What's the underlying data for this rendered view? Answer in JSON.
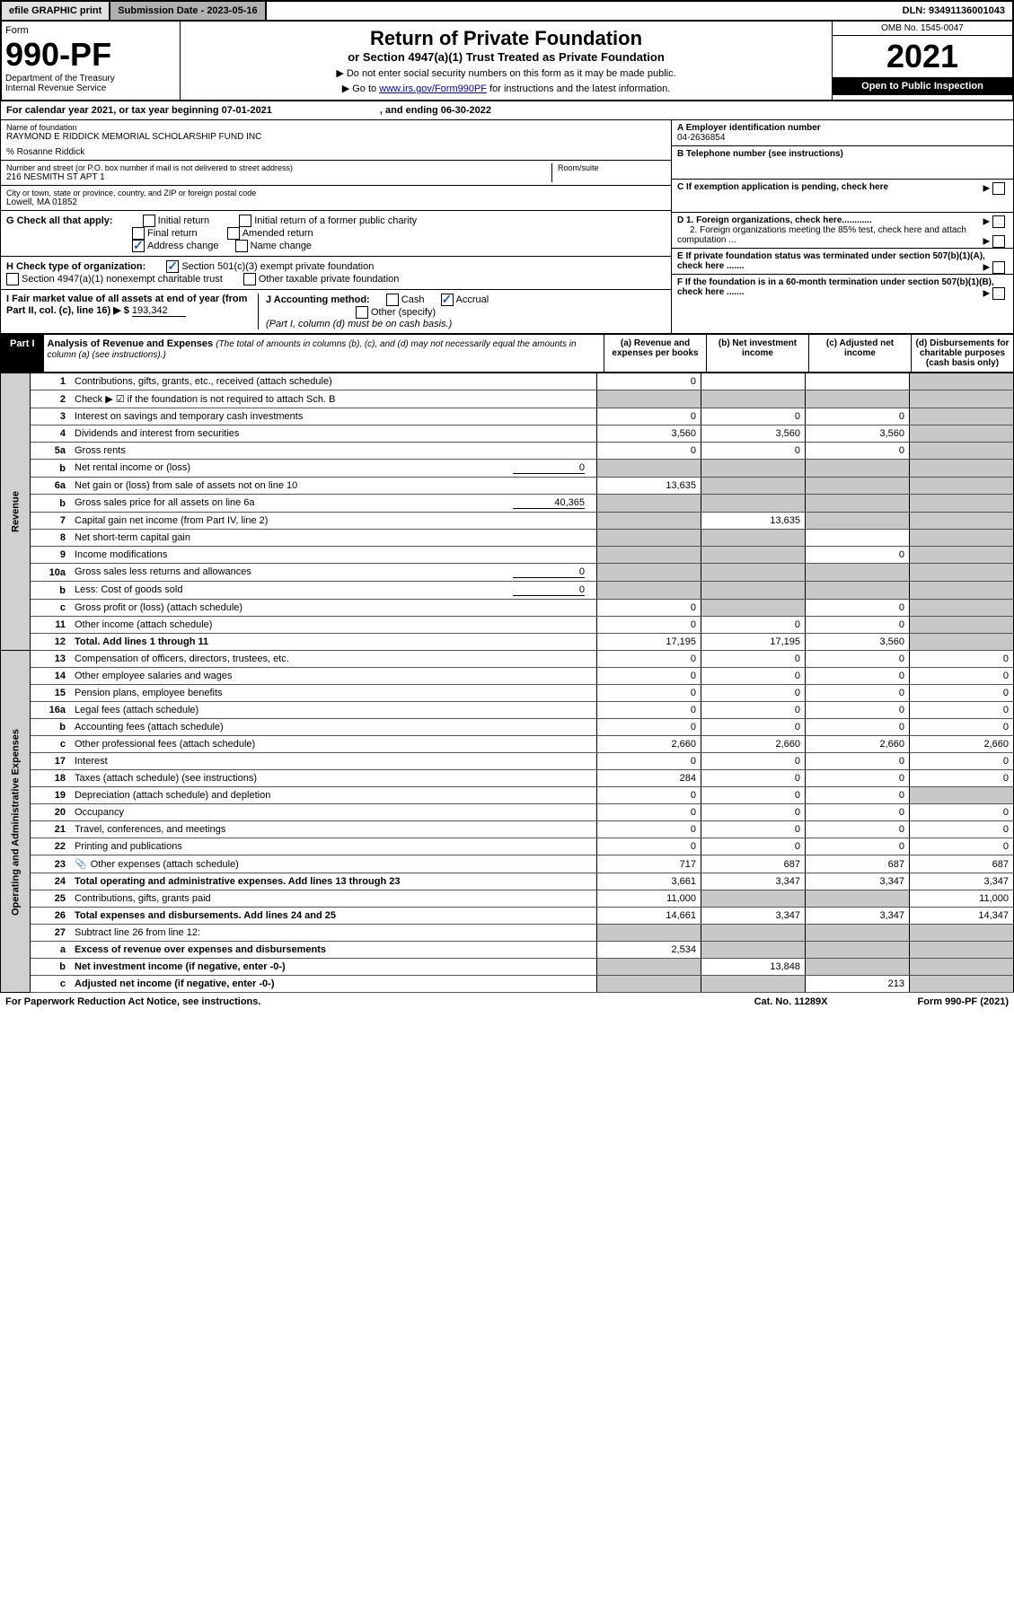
{
  "topbar": {
    "efile": "efile GRAPHIC print",
    "subdate_label": "Submission Date - 2023-05-16",
    "dln": "DLN: 93491136001043"
  },
  "header": {
    "form_label": "Form",
    "form_number": "990-PF",
    "dept": "Department of the Treasury",
    "irs": "Internal Revenue Service",
    "title": "Return of Private Foundation",
    "subtitle": "or Section 4947(a)(1) Trust Treated as Private Foundation",
    "instr1": "▶ Do not enter social security numbers on this form as it may be made public.",
    "instr2_pre": "▶ Go to ",
    "instr2_link": "www.irs.gov/Form990PF",
    "instr2_post": " for instructions and the latest information.",
    "omb": "OMB No. 1545-0047",
    "year": "2021",
    "inspection": "Open to Public Inspection"
  },
  "calendar": {
    "text1": "For calendar year 2021, or tax year beginning 07-01-2021",
    "text2": ", and ending 06-30-2022"
  },
  "foundation": {
    "name_label": "Name of foundation",
    "name": "RAYMOND E RIDDICK MEMORIAL SCHOLARSHIP FUND INC",
    "care_of": "% Rosanne Riddick",
    "addr_label": "Number and street (or P.O. box number if mail is not delivered to street address)",
    "addr": "216 NESMITH ST APT 1",
    "room_label": "Room/suite",
    "city_label": "City or town, state or province, country, and ZIP or foreign postal code",
    "city": "Lowell, MA  01852",
    "a_label": "A Employer identification number",
    "a_val": "04-2636854",
    "b_label": "B Telephone number (see instructions)",
    "c_label": "C If exemption application is pending, check here",
    "d1_label": "D 1. Foreign organizations, check here............",
    "d2_label": "2. Foreign organizations meeting the 85% test, check here and attach computation ...",
    "e_label": "E  If private foundation status was terminated under section 507(b)(1)(A), check here .......",
    "f_label": "F  If the foundation is in a 60-month termination under section 507(b)(1)(B), check here .......",
    "g_label": "G Check all that apply:",
    "g_opts": [
      "Initial return",
      "Initial return of a former public charity",
      "Final return",
      "Amended return",
      "Address change",
      "Name change"
    ],
    "h_label": "H Check type of organization:",
    "h_opts": [
      "Section 501(c)(3) exempt private foundation",
      "Section 4947(a)(1) nonexempt charitable trust",
      "Other taxable private foundation"
    ],
    "i_label": "I Fair market value of all assets at end of year (from Part II, col. (c), line 16) ▶ $",
    "i_val": "193,342",
    "j_label": "J Accounting method:",
    "j_opts": [
      "Cash",
      "Accrual",
      "Other (specify)"
    ],
    "j_note": "(Part I, column (d) must be on cash basis.)"
  },
  "part1": {
    "label": "Part I",
    "title": "Analysis of Revenue and Expenses",
    "title_note": "(The total of amounts in columns (b), (c), and (d) may not necessarily equal the amounts in column (a) (see instructions).)",
    "col_a": "(a) Revenue and expenses per books",
    "col_b": "(b) Net investment income",
    "col_c": "(c) Adjusted net income",
    "col_d": "(d) Disbursements for charitable purposes (cash basis only)"
  },
  "sidebars": {
    "revenue": "Revenue",
    "expenses": "Operating and Administrative Expenses"
  },
  "rows": [
    {
      "n": "1",
      "label": "Contributions, gifts, grants, etc., received (attach schedule)",
      "a": "0",
      "b": "",
      "c": "",
      "d": "",
      "shade": [
        "d"
      ]
    },
    {
      "n": "2",
      "label": "Check ▶ ☑ if the foundation is not required to attach Sch. B",
      "a": "",
      "b": "",
      "c": "",
      "d": "",
      "shade": [
        "a",
        "b",
        "c",
        "d"
      ]
    },
    {
      "n": "3",
      "label": "Interest on savings and temporary cash investments",
      "a": "0",
      "b": "0",
      "c": "0",
      "d": "",
      "shade": [
        "d"
      ]
    },
    {
      "n": "4",
      "label": "Dividends and interest from securities",
      "a": "3,560",
      "b": "3,560",
      "c": "3,560",
      "d": "",
      "shade": [
        "d"
      ]
    },
    {
      "n": "5a",
      "label": "Gross rents",
      "a": "0",
      "b": "0",
      "c": "0",
      "d": "",
      "shade": [
        "d"
      ]
    },
    {
      "n": "b",
      "label": "Net rental income or (loss)",
      "inline": "0",
      "a": "",
      "b": "",
      "c": "",
      "d": "",
      "shade": [
        "a",
        "b",
        "c",
        "d"
      ]
    },
    {
      "n": "6a",
      "label": "Net gain or (loss) from sale of assets not on line 10",
      "a": "13,635",
      "b": "",
      "c": "",
      "d": "",
      "shade": [
        "b",
        "c",
        "d"
      ]
    },
    {
      "n": "b",
      "label": "Gross sales price for all assets on line 6a",
      "inline": "40,365",
      "a": "",
      "b": "",
      "c": "",
      "d": "",
      "shade": [
        "a",
        "b",
        "c",
        "d"
      ]
    },
    {
      "n": "7",
      "label": "Capital gain net income (from Part IV, line 2)",
      "a": "",
      "b": "13,635",
      "c": "",
      "d": "",
      "shade": [
        "a",
        "c",
        "d"
      ]
    },
    {
      "n": "8",
      "label": "Net short-term capital gain",
      "a": "",
      "b": "",
      "c": "",
      "d": "",
      "shade": [
        "a",
        "b",
        "d"
      ]
    },
    {
      "n": "9",
      "label": "Income modifications",
      "a": "",
      "b": "",
      "c": "0",
      "d": "",
      "shade": [
        "a",
        "b",
        "d"
      ]
    },
    {
      "n": "10a",
      "label": "Gross sales less returns and allowances",
      "inline": "0",
      "a": "",
      "b": "",
      "c": "",
      "d": "",
      "shade": [
        "a",
        "b",
        "c",
        "d"
      ]
    },
    {
      "n": "b",
      "label": "Less: Cost of goods sold",
      "inline": "0",
      "a": "",
      "b": "",
      "c": "",
      "d": "",
      "shade": [
        "a",
        "b",
        "c",
        "d"
      ]
    },
    {
      "n": "c",
      "label": "Gross profit or (loss) (attach schedule)",
      "a": "0",
      "b": "",
      "c": "0",
      "d": "",
      "shade": [
        "b",
        "d"
      ]
    },
    {
      "n": "11",
      "label": "Other income (attach schedule)",
      "a": "0",
      "b": "0",
      "c": "0",
      "d": "",
      "shade": [
        "d"
      ]
    },
    {
      "n": "12",
      "label": "Total. Add lines 1 through 11",
      "a": "17,195",
      "b": "17,195",
      "c": "3,560",
      "d": "",
      "shade": [
        "d"
      ],
      "bold": true
    },
    {
      "n": "13",
      "label": "Compensation of officers, directors, trustees, etc.",
      "a": "0",
      "b": "0",
      "c": "0",
      "d": "0"
    },
    {
      "n": "14",
      "label": "Other employee salaries and wages",
      "a": "0",
      "b": "0",
      "c": "0",
      "d": "0"
    },
    {
      "n": "15",
      "label": "Pension plans, employee benefits",
      "a": "0",
      "b": "0",
      "c": "0",
      "d": "0"
    },
    {
      "n": "16a",
      "label": "Legal fees (attach schedule)",
      "a": "0",
      "b": "0",
      "c": "0",
      "d": "0"
    },
    {
      "n": "b",
      "label": "Accounting fees (attach schedule)",
      "a": "0",
      "b": "0",
      "c": "0",
      "d": "0"
    },
    {
      "n": "c",
      "label": "Other professional fees (attach schedule)",
      "a": "2,660",
      "b": "2,660",
      "c": "2,660",
      "d": "2,660"
    },
    {
      "n": "17",
      "label": "Interest",
      "a": "0",
      "b": "0",
      "c": "0",
      "d": "0"
    },
    {
      "n": "18",
      "label": "Taxes (attach schedule) (see instructions)",
      "a": "284",
      "b": "0",
      "c": "0",
      "d": "0"
    },
    {
      "n": "19",
      "label": "Depreciation (attach schedule) and depletion",
      "a": "0",
      "b": "0",
      "c": "0",
      "d": "",
      "shade": [
        "d"
      ]
    },
    {
      "n": "20",
      "label": "Occupancy",
      "a": "0",
      "b": "0",
      "c": "0",
      "d": "0"
    },
    {
      "n": "21",
      "label": "Travel, conferences, and meetings",
      "a": "0",
      "b": "0",
      "c": "0",
      "d": "0"
    },
    {
      "n": "22",
      "label": "Printing and publications",
      "a": "0",
      "b": "0",
      "c": "0",
      "d": "0"
    },
    {
      "n": "23",
      "label": "Other expenses (attach schedule)",
      "a": "717",
      "b": "687",
      "c": "687",
      "d": "687",
      "icon": true
    },
    {
      "n": "24",
      "label": "Total operating and administrative expenses. Add lines 13 through 23",
      "a": "3,661",
      "b": "3,347",
      "c": "3,347",
      "d": "3,347",
      "bold": true
    },
    {
      "n": "25",
      "label": "Contributions, gifts, grants paid",
      "a": "11,000",
      "b": "",
      "c": "",
      "d": "11,000",
      "shade": [
        "b",
        "c"
      ]
    },
    {
      "n": "26",
      "label": "Total expenses and disbursements. Add lines 24 and 25",
      "a": "14,661",
      "b": "3,347",
      "c": "3,347",
      "d": "14,347",
      "bold": true
    },
    {
      "n": "27",
      "label": "Subtract line 26 from line 12:",
      "a": "",
      "b": "",
      "c": "",
      "d": "",
      "shade": [
        "a",
        "b",
        "c",
        "d"
      ]
    },
    {
      "n": "a",
      "label": "Excess of revenue over expenses and disbursements",
      "a": "2,534",
      "b": "",
      "c": "",
      "d": "",
      "shade": [
        "b",
        "c",
        "d"
      ],
      "bold": true
    },
    {
      "n": "b",
      "label": "Net investment income (if negative, enter -0-)",
      "a": "",
      "b": "13,848",
      "c": "",
      "d": "",
      "shade": [
        "a",
        "c",
        "d"
      ],
      "bold": true
    },
    {
      "n": "c",
      "label": "Adjusted net income (if negative, enter -0-)",
      "a": "",
      "b": "",
      "c": "213",
      "d": "",
      "shade": [
        "a",
        "b",
        "d"
      ],
      "bold": true
    }
  ],
  "footer": {
    "left": "For Paperwork Reduction Act Notice, see instructions.",
    "mid": "Cat. No. 11289X",
    "right": "Form 990-PF (2021)"
  }
}
